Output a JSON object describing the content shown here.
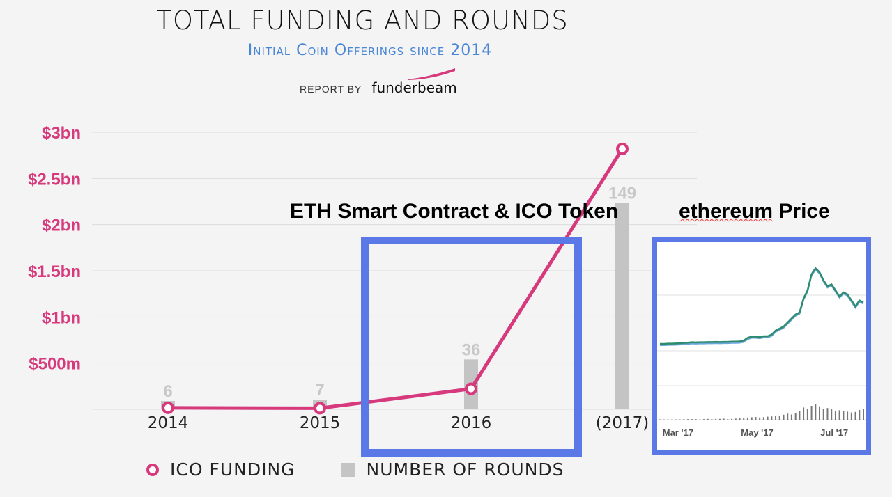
{
  "header": {
    "title": "TOTAL FUNDING AND ROUNDS",
    "subtitle": "Initial Coin Offerings since 2014",
    "report_by": "REPORT BY",
    "brand": "funderbeam"
  },
  "overlay": {
    "eth_label": "ETH Smart Contract & ICO Token",
    "price_label_word": "ethereum",
    "price_label_rest": "Price"
  },
  "colors": {
    "funding": "#d63a7c",
    "rounds": "#c4c4c4",
    "highlight": "#5a78e6",
    "eth_line": "#2e8b6e"
  },
  "legend": {
    "funding_label": "ICO FUNDING",
    "rounds_label": "NUMBER OF ROUNDS"
  },
  "chart_data": [
    {
      "type": "line+bar",
      "title": "TOTAL FUNDING AND ROUNDS",
      "categories": [
        "2014",
        "2015",
        "2016",
        "(2017)"
      ],
      "yticks": [
        "$3bn",
        "$2.5bn",
        "$2bn",
        "$1.5bn",
        "$1bn",
        "$500m"
      ],
      "ytick_values": [
        3000,
        2500,
        2000,
        1500,
        1000,
        500
      ],
      "ylim": [
        0,
        3000
      ],
      "series": [
        {
          "name": "ICO FUNDING",
          "kind": "line",
          "unit": "$m",
          "values": [
            16,
            12,
            222,
            2820
          ]
        },
        {
          "name": "NUMBER OF ROUNDS",
          "kind": "bar",
          "values": [
            6,
            7,
            36,
            149
          ],
          "labels": [
            "6",
            "7",
            "36",
            "149"
          ],
          "rounds_scale_max": 200
        }
      ]
    },
    {
      "type": "line",
      "title": "ethereum Price",
      "x_ticks": [
        "Mar '17",
        "May '17",
        "Jul '17"
      ],
      "x_tick_positions": [
        0.1,
        0.48,
        0.85
      ],
      "ylim": [
        0,
        450
      ],
      "series": [
        {
          "name": "price",
          "values": [
            14,
            14,
            15,
            15,
            16,
            17,
            19,
            20,
            22,
            21,
            22,
            22,
            23,
            23,
            24,
            23,
            24,
            24,
            25,
            25,
            26,
            30,
            44,
            50,
            50,
            48,
            52,
            52,
            60,
            80,
            90,
            100,
            120,
            140,
            160,
            170,
            240,
            280,
            360,
            390,
            370,
            330,
            300,
            310,
            280,
            250,
            270,
            260,
            230,
            200,
            230,
            220
          ]
        }
      ],
      "volume": [
        1,
        1,
        1,
        1,
        1,
        1,
        2,
        2,
        2,
        2,
        1,
        2,
        3,
        2,
        3,
        3,
        4,
        2,
        3,
        4,
        5,
        6,
        8,
        9,
        10,
        8,
        9,
        11,
        12,
        14,
        15,
        18,
        22,
        19,
        24,
        30,
        44,
        40,
        50,
        55,
        48,
        40,
        42,
        38,
        30,
        34,
        32,
        29,
        26,
        28,
        35,
        40
      ]
    }
  ]
}
